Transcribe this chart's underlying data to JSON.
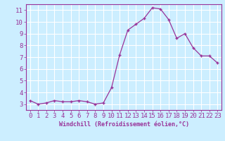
{
  "x": [
    0,
    1,
    2,
    3,
    4,
    5,
    6,
    7,
    8,
    9,
    10,
    11,
    12,
    13,
    14,
    15,
    16,
    17,
    18,
    19,
    20,
    21,
    22,
    23
  ],
  "y": [
    3.3,
    3.0,
    3.1,
    3.3,
    3.2,
    3.2,
    3.3,
    3.2,
    3.0,
    3.1,
    4.4,
    7.2,
    9.3,
    9.8,
    10.3,
    11.2,
    11.1,
    10.2,
    8.6,
    9.0,
    7.8,
    7.1,
    7.1,
    6.5
  ],
  "line_color": "#993399",
  "marker": "+",
  "bg_color": "#cceeff",
  "grid_color": "#ffffff",
  "xlabel": "Windchill (Refroidissement éolien,°C)",
  "ylim": [
    2.5,
    11.5
  ],
  "xlim": [
    -0.5,
    23.5
  ],
  "yticks": [
    3,
    4,
    5,
    6,
    7,
    8,
    9,
    10,
    11
  ],
  "xticks": [
    0,
    1,
    2,
    3,
    4,
    5,
    6,
    7,
    8,
    9,
    10,
    11,
    12,
    13,
    14,
    15,
    16,
    17,
    18,
    19,
    20,
    21,
    22,
    23
  ],
  "tick_label_color": "#993399",
  "label_fontsize": 6.0,
  "tick_fontsize": 6.5
}
